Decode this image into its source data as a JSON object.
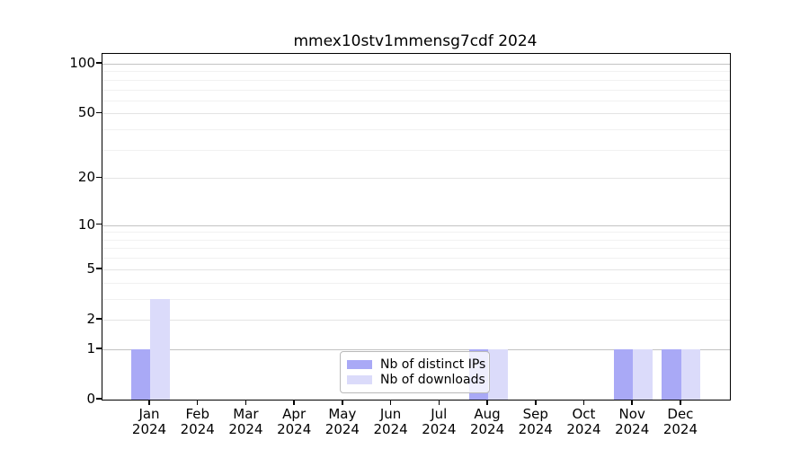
{
  "chart_data": {
    "type": "bar",
    "title": "mmex10stv1mmensg7cdf 2024",
    "x_categories": [
      {
        "month": "Jan",
        "year": "2024"
      },
      {
        "month": "Feb",
        "year": "2024"
      },
      {
        "month": "Mar",
        "year": "2024"
      },
      {
        "month": "Apr",
        "year": "2024"
      },
      {
        "month": "May",
        "year": "2024"
      },
      {
        "month": "Jun",
        "year": "2024"
      },
      {
        "month": "Jul",
        "year": "2024"
      },
      {
        "month": "Aug",
        "year": "2024"
      },
      {
        "month": "Sep",
        "year": "2024"
      },
      {
        "month": "Oct",
        "year": "2024"
      },
      {
        "month": "Nov",
        "year": "2024"
      },
      {
        "month": "Dec",
        "year": "2024"
      }
    ],
    "series": [
      {
        "name": "Nb of distinct IPs",
        "color": "#a9a9f6",
        "values": [
          1,
          0,
          0,
          0,
          0,
          0,
          0,
          1,
          0,
          0,
          1,
          1
        ]
      },
      {
        "name": "Nb of downloads",
        "color": "#dbdbfa",
        "values": [
          3,
          0,
          0,
          0,
          0,
          0,
          0,
          1,
          0,
          0,
          1,
          1
        ]
      }
    ],
    "y_axis": {
      "scale": "log10(value+1)",
      "tick_labels": [
        "100",
        "50",
        "20",
        "10",
        "5",
        "2",
        "1",
        "0"
      ],
      "tick_values": [
        100,
        50,
        20,
        10,
        5,
        2,
        1,
        0
      ],
      "range_top": 114,
      "gridlines_major": [
        100,
        10,
        1
      ],
      "gridlines_mid": [
        50,
        20,
        5,
        2
      ],
      "gridlines_minor": [
        90,
        80,
        70,
        60,
        40,
        30,
        9,
        8,
        7,
        6,
        4,
        3
      ]
    },
    "legend_position": "inside-bottom-center",
    "grid": true
  }
}
